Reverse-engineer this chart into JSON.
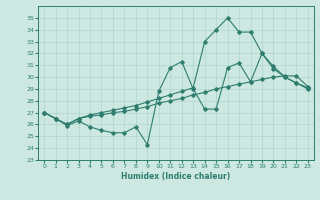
{
  "xlabel": "Humidex (Indice chaleur)",
  "bg_color": "#cce8e0",
  "line_color": "#2e7d6e",
  "grid_color": "#aed4cc",
  "xlim": [
    -0.5,
    23.5
  ],
  "ylim": [
    23,
    36
  ],
  "yticks": [
    23,
    24,
    25,
    26,
    27,
    28,
    29,
    30,
    31,
    32,
    33,
    34,
    35
  ],
  "xticks": [
    0,
    1,
    2,
    3,
    4,
    5,
    6,
    7,
    8,
    9,
    10,
    11,
    12,
    13,
    14,
    15,
    16,
    17,
    18,
    19,
    20,
    21,
    22,
    23
  ],
  "line1_x": [
    0,
    1,
    2,
    3,
    4,
    5,
    6,
    7,
    8,
    9,
    10,
    11,
    12,
    13,
    14,
    15,
    16,
    17,
    18,
    19,
    20,
    21,
    22,
    23
  ],
  "line1_y": [
    27,
    26.5,
    26.0,
    26.5,
    26.7,
    26.8,
    27.0,
    27.1,
    27.3,
    27.5,
    27.8,
    28.0,
    28.2,
    28.5,
    28.7,
    29.0,
    29.2,
    29.4,
    29.6,
    29.8,
    30.0,
    30.1,
    30.1,
    29.2
  ],
  "line2_x": [
    0,
    1,
    2,
    3,
    4,
    5,
    6,
    7,
    8,
    9,
    10,
    11,
    12,
    13,
    14,
    15,
    16,
    17,
    18,
    19,
    20,
    21,
    22,
    23
  ],
  "line2_y": [
    27,
    26.5,
    25.9,
    26.3,
    25.8,
    25.5,
    25.3,
    25.3,
    25.8,
    24.3,
    28.8,
    30.8,
    31.3,
    29.0,
    27.3,
    27.3,
    30.8,
    31.2,
    29.6,
    32.0,
    30.7,
    30.0,
    29.5,
    29.0
  ],
  "line3_x": [
    0,
    1,
    2,
    3,
    4,
    5,
    6,
    7,
    8,
    9,
    10,
    11,
    12,
    13,
    14,
    15,
    16,
    17,
    18,
    19,
    20,
    21,
    22,
    23
  ],
  "line3_y": [
    27,
    26.5,
    26.0,
    26.5,
    26.8,
    27.0,
    27.2,
    27.4,
    27.6,
    27.9,
    28.2,
    28.5,
    28.8,
    29.1,
    33.0,
    34.0,
    35.0,
    33.8,
    33.8,
    32.0,
    30.9,
    30.0,
    29.5,
    29.1
  ]
}
